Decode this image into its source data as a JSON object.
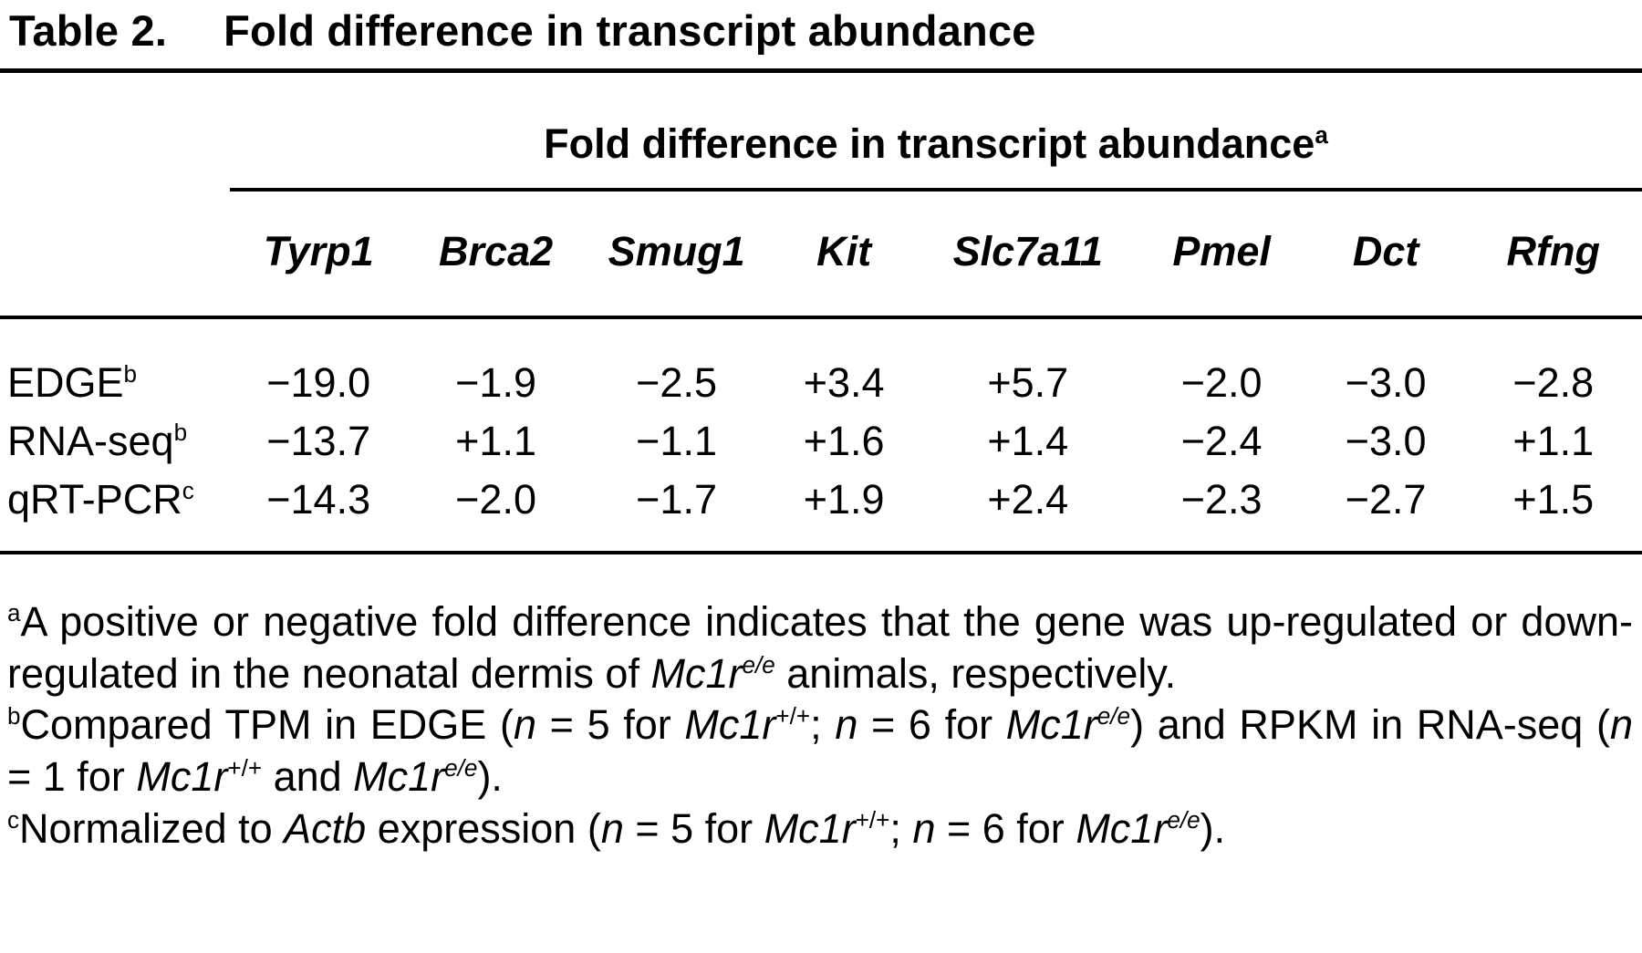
{
  "title": {
    "label": "Table 2.",
    "text": "Fold difference in transcript abundance"
  },
  "table": {
    "spanning_header": {
      "text": "Fold difference in transcript abundance",
      "footnote_marker": "a"
    },
    "columns": [
      "Tyrp1",
      "Brca2",
      "Smug1",
      "Kit",
      "Slc7a11",
      "Pmel",
      "Dct",
      "Rfng"
    ],
    "rows": [
      {
        "label": "EDGE",
        "footnote_marker": "b",
        "values": [
          "−19.0",
          "−1.9",
          "−2.5",
          "+3.4",
          "+5.7",
          "−2.0",
          "−3.0",
          "−2.8"
        ]
      },
      {
        "label": "RNA-seq",
        "footnote_marker": "b",
        "values": [
          "−13.7",
          "+1.1",
          "−1.1",
          "+1.6",
          "+1.4",
          "−2.4",
          "−3.0",
          "+1.1"
        ]
      },
      {
        "label": "qRT-PCR",
        "footnote_marker": "c",
        "values": [
          "−14.3",
          "−2.0",
          "−1.7",
          "+1.9",
          "+2.4",
          "−2.3",
          "−2.7",
          "+1.5"
        ]
      }
    ]
  },
  "footnotes": [
    {
      "segments": [
        {
          "t": "a",
          "s": true
        },
        {
          "t": "A positive or negative fold difference indicates that the gene was up-regulated or down-regulated in the neonatal dermis of "
        },
        {
          "t": "Mc1r",
          "i": true
        },
        {
          "t": "e/e",
          "s": true,
          "i": true
        },
        {
          "t": " animals, respectively."
        }
      ]
    },
    {
      "segments": [
        {
          "t": "b",
          "s": true
        },
        {
          "t": "Compared TPM in EDGE ("
        },
        {
          "t": "n",
          "i": true
        },
        {
          "t": " = 5 for "
        },
        {
          "t": "Mc1r",
          "i": true
        },
        {
          "t": "+/+",
          "s": true
        },
        {
          "t": "; "
        },
        {
          "t": "n",
          "i": true
        },
        {
          "t": " = 6 for "
        },
        {
          "t": "Mc1r",
          "i": true
        },
        {
          "t": "e/e",
          "s": true,
          "i": true
        },
        {
          "t": ") and RPKM in RNA-seq ("
        },
        {
          "t": "n",
          "i": true
        },
        {
          "t": " = 1 for "
        },
        {
          "t": "Mc1r",
          "i": true
        },
        {
          "t": "+/+",
          "s": true
        },
        {
          "t": " and "
        },
        {
          "t": "Mc1r",
          "i": true
        },
        {
          "t": "e/e",
          "s": true,
          "i": true
        },
        {
          "t": ")."
        }
      ]
    },
    {
      "segments": [
        {
          "t": "c",
          "s": true
        },
        {
          "t": "Normalized to "
        },
        {
          "t": "Actb",
          "i": true
        },
        {
          "t": " expression ("
        },
        {
          "t": "n",
          "i": true
        },
        {
          "t": " = 5 for "
        },
        {
          "t": "Mc1r",
          "i": true
        },
        {
          "t": "+/+",
          "s": true
        },
        {
          "t": "; "
        },
        {
          "t": "n",
          "i": true
        },
        {
          "t": " = 6 for "
        },
        {
          "t": "Mc1r",
          "i": true
        },
        {
          "t": "e/e",
          "s": true,
          "i": true
        },
        {
          "t": ")."
        }
      ]
    }
  ]
}
